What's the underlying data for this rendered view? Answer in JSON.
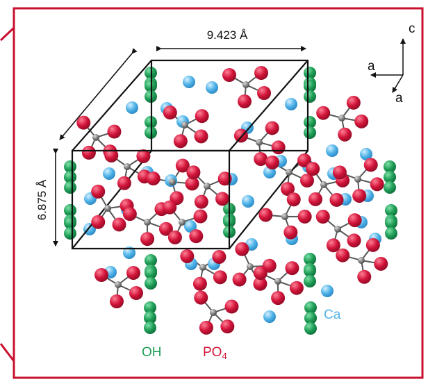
{
  "frame_color": "#c8102e",
  "dimension_a": "9.423 Å",
  "dimension_c": "6.875 Å",
  "axes": {
    "c": "c",
    "a1": "a",
    "a2": "a"
  },
  "legend": {
    "oh": "OH",
    "po4_base": "PO",
    "po4_sub": "4",
    "ca": "Ca"
  },
  "colors": {
    "oh": "#1f9e57",
    "phosphate_oxygen": "#d2143a",
    "phosphorus": "#7a7a7a",
    "ca": "#4fb3e8",
    "cell_edge": "#111111"
  },
  "icons": {
    "axes": "crystal-axes-icon",
    "atoms": "sphere-atom-icon"
  }
}
